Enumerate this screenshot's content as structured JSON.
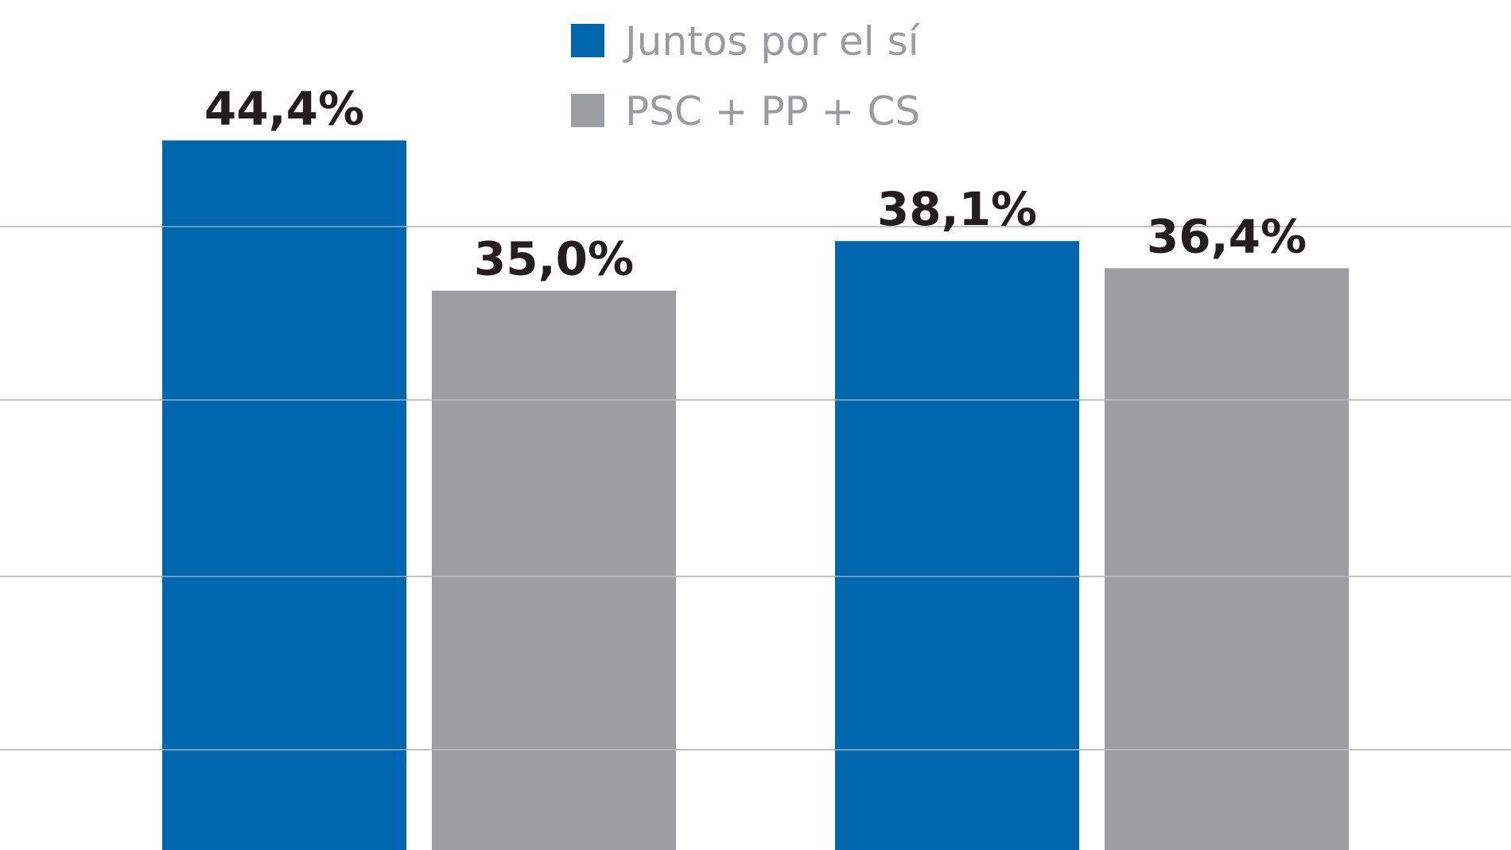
{
  "chart_data": {
    "type": "bar",
    "categories": [
      "",
      ""
    ],
    "series": [
      {
        "name": "Juntos por el sí",
        "color": "#0066ad",
        "values": [
          44.4,
          38.1
        ],
        "labels": [
          "44,4%",
          "38,1%"
        ]
      },
      {
        "name": "PSC + PP + CS",
        "color": "#9d9ea1",
        "values": [
          35.0,
          36.4
        ],
        "labels": [
          "35,0%",
          "36,4%"
        ]
      }
    ],
    "ylim": [
      0,
      56
    ],
    "grid": true,
    "legend": "top-center",
    "gridline_color": "#b9babc"
  }
}
